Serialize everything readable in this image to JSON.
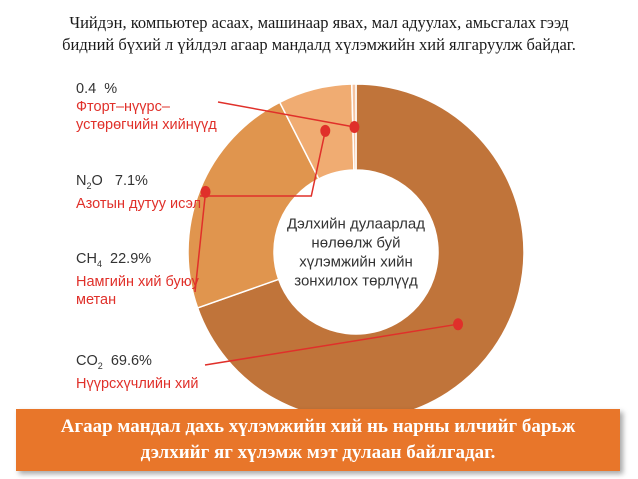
{
  "intro": {
    "line1": "Чийдэн, компьютер асаах, машинаар явах, мал адуулах, амьсгалах гээд",
    "line2": "бидний бүхий л үйлдэл агаар мандалд хүлэмжийн хий ялгаруулж байдаг."
  },
  "chart_data": {
    "type": "pie",
    "center_label": [
      "Дэлхийн дулаарлад",
      "нөлөөлж буй",
      "хүлэмжийн хийн",
      "зонхилох төрлүүд"
    ],
    "slices": [
      {
        "formula_main": "CO",
        "formula_sub": "2",
        "percent_text": "69.6%",
        "value": 69.6,
        "name": "Нүүрсхүчлийн хий",
        "color": "#c0743a"
      },
      {
        "formula_main": "CH",
        "formula_sub": "4",
        "percent_text": "22.9%",
        "value": 22.9,
        "name_lines": [
          "Намгийн хий буюу",
          "метан"
        ],
        "color": "#e0954e"
      },
      {
        "formula_main": "N",
        "formula_sub": "2",
        "formula_tail": "O",
        "percent_text": "7.1%",
        "value": 7.1,
        "name": "Азотын дутуу исэл",
        "color": "#f0ac72"
      },
      {
        "formula_main": "0.4",
        "percent_text": "%",
        "value": 0.4,
        "name_lines": [
          "Фторт–нүүрс–",
          "устөрөгчийн хийнүүд"
        ],
        "color": "#f5c3a0"
      }
    ]
  },
  "colors": {
    "accent_red": "#e0302a",
    "banner": "#e8762a"
  },
  "banner": {
    "line1": "Агаар мандал дахь хүлэмжийн хий нь нарны илчийг барьж",
    "line2": "дэлхийг яг хүлэмж мэт дулаан байлгадаг."
  }
}
